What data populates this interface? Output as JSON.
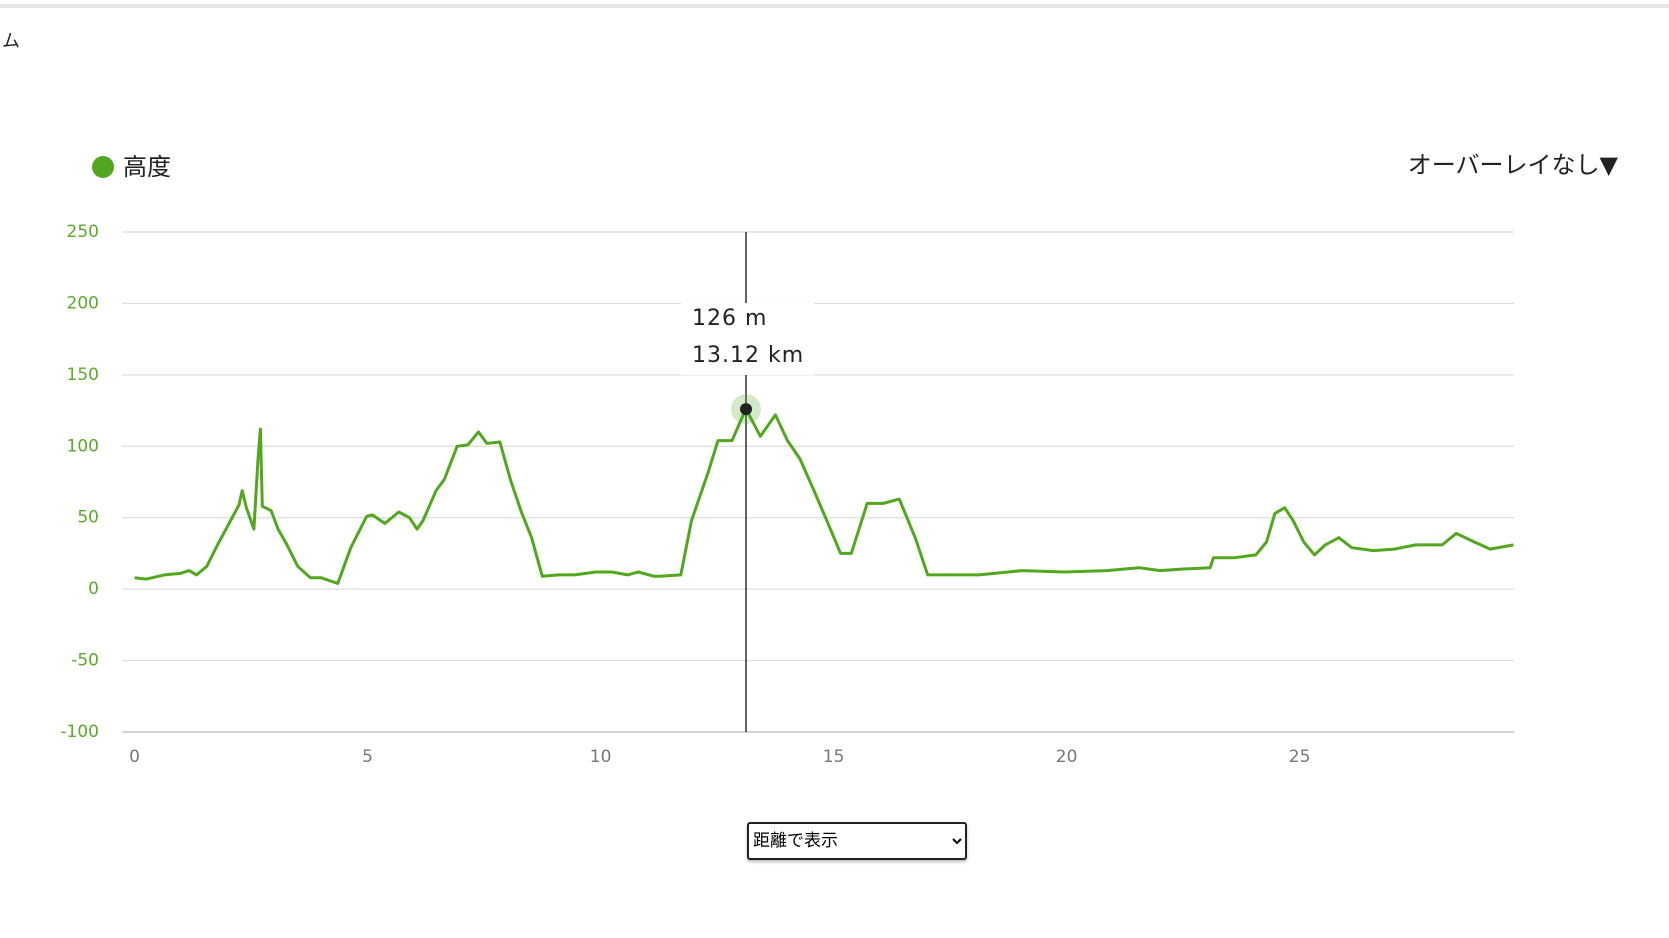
{
  "header": {
    "text": "ム"
  },
  "overlay_menu": "オーバーレイなし▼",
  "select": {
    "selected": "距離で表示"
  },
  "chart_data": {
    "type": "line",
    "x": [
      0,
      0.25,
      0.64,
      0.98,
      1.17,
      1.33,
      1.55,
      1.78,
      2.01,
      2.24,
      2.31,
      2.4,
      2.56,
      2.65,
      2.7,
      2.74,
      2.93,
      3.08,
      3.27,
      3.5,
      3.77,
      4.0,
      4.18,
      4.36,
      4.64,
      4.98,
      5.1,
      5.37,
      5.67,
      5.9,
      6.06,
      6.19,
      6.47,
      6.65,
      6.92,
      7.15,
      7.38,
      7.56,
      7.84,
      8.07,
      8.3,
      8.52,
      8.75,
      9.1,
      9.44,
      9.9,
      10.24,
      10.58,
      10.81,
      11.15,
      11.27,
      11.72,
      11.95,
      12.3,
      12.52,
      12.82,
      13.1,
      13.12,
      13.43,
      13.75,
      14.01,
      14.28,
      14.58,
      14.88,
      15.15,
      15.38,
      15.72,
      16.06,
      16.41,
      16.75,
      17.02,
      17.44,
      18.12,
      19.04,
      19.95,
      20.86,
      21.55,
      22.01,
      22.46,
      23.08,
      23.15,
      23.61,
      24.06,
      24.29,
      24.47,
      24.68,
      24.86,
      25.09,
      25.32,
      25.55,
      25.84,
      26.12,
      26.58,
      27.03,
      27.49,
      28.06,
      28.36,
      28.75,
      29.09,
      29.59
    ],
    "series": [
      {
        "name": "高度",
        "color": "#52a71f",
        "values": [
          8,
          7,
          10,
          11,
          13,
          10,
          16,
          31,
          45,
          59,
          69,
          57,
          42,
          92,
          112,
          58,
          55,
          42,
          31,
          16,
          8,
          8,
          6,
          4,
          29,
          51,
          52,
          46,
          54,
          50,
          42,
          48,
          69,
          77,
          100,
          101,
          110,
          102,
          103,
          76,
          54,
          36,
          9,
          10,
          10,
          12,
          12,
          10,
          12,
          9,
          9,
          10,
          48,
          81,
          104,
          104,
          125,
          126,
          107,
          122,
          104,
          91,
          69,
          46,
          25,
          25,
          60,
          60,
          63,
          36,
          10,
          10,
          10,
          13,
          12,
          13,
          15,
          13,
          14,
          15,
          22,
          22,
          24,
          33,
          53,
          57,
          48,
          33,
          24,
          31,
          36,
          29,
          27,
          28,
          31,
          31,
          39,
          33,
          28,
          31
        ]
      }
    ],
    "xlim": [
      -0.27,
      29.6
    ],
    "xticks": [
      0,
      5,
      10,
      15,
      20,
      25
    ],
    "ylim": [
      -100,
      250
    ],
    "yticks": [
      -100,
      -50,
      0,
      50,
      100,
      150,
      200,
      250
    ],
    "grid": true,
    "crosshair": {
      "x": 13.12,
      "y": 126,
      "y_label": "126 m",
      "x_label": "13.12 km"
    }
  }
}
